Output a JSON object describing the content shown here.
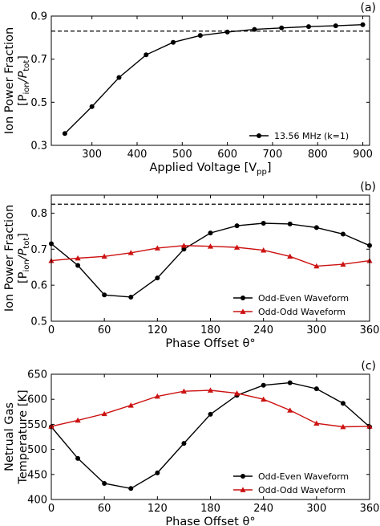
{
  "chart_data": [
    {
      "type": "line",
      "panel_label": "(a)",
      "xlabel": "Applied Voltage [V",
      "xlabel_sub": "pp",
      "xlabel_end": "]",
      "ylabel_line1": "Ion Power Fraction",
      "ylabel_line2": {
        "open": "[P",
        "sub1": "ion",
        "slash": "/P",
        "sub2": "tot",
        "close": "]"
      },
      "xlim": [
        210,
        915
      ],
      "ylim": [
        0.3,
        0.9
      ],
      "xticks": [
        300,
        400,
        500,
        600,
        700,
        800,
        900
      ],
      "yticks": [
        0.3,
        0.5,
        0.7,
        0.9
      ],
      "yticks_labels": [
        "0.3",
        "0.5",
        "0.7",
        "0.9"
      ],
      "reference_line": 0.83,
      "legend_position": "lower-right",
      "series": [
        {
          "name": "13.56 MHz (k=1)",
          "color": "#000000",
          "marker": "circle",
          "x": [
            240,
            300,
            360,
            420,
            480,
            540,
            600,
            660,
            720,
            780,
            840,
            900
          ],
          "y": [
            0.355,
            0.48,
            0.615,
            0.72,
            0.778,
            0.81,
            0.826,
            0.838,
            0.845,
            0.851,
            0.855,
            0.86
          ]
        }
      ]
    },
    {
      "type": "line",
      "panel_label": "(b)",
      "xlabel": "Phase Offset θ°",
      "ylabel_line1": "Ion Power Fraction",
      "ylabel_line2": {
        "open": "[P",
        "sub1": "ion",
        "slash": "/P",
        "sub2": "tot",
        "close": "]"
      },
      "xlim": [
        0,
        360
      ],
      "ylim": [
        0.5,
        0.85
      ],
      "xticks": [
        0,
        60,
        120,
        180,
        240,
        300,
        360
      ],
      "yticks": [
        0.5,
        0.6,
        0.7,
        0.8
      ],
      "yticks_labels": [
        "0.5",
        "0.6",
        "0.7",
        "0.8"
      ],
      "reference_line": 0.825,
      "legend_position": "lower-right",
      "series": [
        {
          "name": "Odd-Even Waveform",
          "color": "#000000",
          "marker": "circle",
          "x": [
            0,
            30,
            60,
            90,
            120,
            150,
            180,
            210,
            240,
            270,
            300,
            330,
            360
          ],
          "y": [
            0.715,
            0.655,
            0.573,
            0.567,
            0.62,
            0.7,
            0.745,
            0.765,
            0.772,
            0.77,
            0.76,
            0.742,
            0.71
          ]
        },
        {
          "name": "Odd-Odd Waveform",
          "color": "#cc1111",
          "marker": "triangle",
          "x": [
            0,
            30,
            60,
            90,
            120,
            150,
            180,
            210,
            240,
            270,
            300,
            330,
            360
          ],
          "y": [
            0.668,
            0.675,
            0.68,
            0.69,
            0.703,
            0.71,
            0.708,
            0.705,
            0.697,
            0.68,
            0.653,
            0.658,
            0.668
          ]
        }
      ]
    },
    {
      "type": "line",
      "panel_label": "(c)",
      "xlabel": "Phase Offset θ°",
      "ylabel_line1": "Netrual Gas",
      "ylabel_line2": "Temperature [K]",
      "xlim": [
        0,
        360
      ],
      "ylim": [
        400,
        650
      ],
      "xticks": [
        0,
        60,
        120,
        180,
        240,
        300,
        360
      ],
      "yticks": [
        400,
        450,
        500,
        550,
        600,
        650
      ],
      "yticks_labels": [
        "400",
        "450",
        "500",
        "550",
        "600",
        "650"
      ],
      "legend_position": "lower-right",
      "series": [
        {
          "name": "Odd-Even Waveform",
          "color": "#000000",
          "marker": "circle",
          "x": [
            0,
            30,
            60,
            90,
            120,
            150,
            180,
            210,
            240,
            270,
            300,
            330,
            360
          ],
          "y": [
            545,
            482,
            432,
            422,
            453,
            512,
            570,
            608,
            628,
            633,
            621,
            592,
            545
          ]
        },
        {
          "name": "Odd-Odd Waveform",
          "color": "#cc1111",
          "marker": "triangle",
          "x": [
            0,
            30,
            60,
            90,
            120,
            150,
            180,
            210,
            240,
            270,
            300,
            330,
            360
          ],
          "y": [
            546,
            558,
            571,
            588,
            606,
            616,
            618,
            612,
            600,
            578,
            552,
            545,
            546
          ]
        }
      ]
    }
  ]
}
